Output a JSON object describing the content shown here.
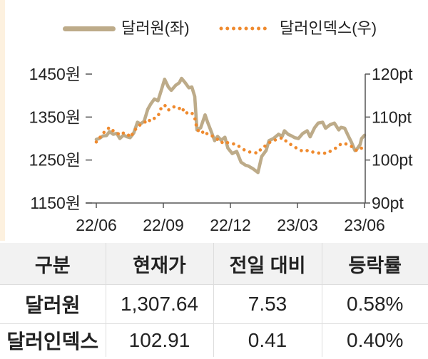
{
  "chart_data": {
    "type": "line",
    "legend": "top",
    "grid": false,
    "xlim": [
      "2022-06-27",
      "2023-06-27"
    ],
    "x_tick_labels": [
      "22/06",
      "22/09",
      "22/12",
      "23/03",
      "23/06"
    ],
    "y_left": {
      "ylim": [
        1150,
        1450
      ],
      "ticks": [
        1450,
        1350,
        1250,
        1150
      ],
      "tick_labels": [
        "1450원",
        "1350원",
        "1250원",
        "1150원"
      ]
    },
    "y_right": {
      "ylim": [
        90,
        120
      ],
      "ticks": [
        120,
        110,
        100,
        90
      ],
      "tick_labels": [
        "120pt",
        "110pt",
        "100pt",
        "90pt"
      ]
    },
    "x": [
      "2022-06-27",
      "2022-07-01",
      "2022-07-06",
      "2022-07-11",
      "2022-07-15",
      "2022-07-20",
      "2022-07-25",
      "2022-07-29",
      "2022-08-03",
      "2022-08-08",
      "2022-08-12",
      "2022-08-17",
      "2022-08-22",
      "2022-08-26",
      "2022-08-31",
      "2022-09-05",
      "2022-09-09",
      "2022-09-14",
      "2022-09-19",
      "2022-09-23",
      "2022-09-28",
      "2022-10-03",
      "2022-10-07",
      "2022-10-13",
      "2022-10-18",
      "2022-10-21",
      "2022-10-26",
      "2022-10-31",
      "2022-11-04",
      "2022-11-08",
      "2022-11-11",
      "2022-11-16",
      "2022-11-22",
      "2022-11-25",
      "2022-11-30",
      "2022-12-05",
      "2022-12-09",
      "2022-12-14",
      "2022-12-19",
      "2022-12-23",
      "2022-12-29",
      "2023-01-04",
      "2023-01-10",
      "2023-01-16",
      "2023-01-20",
      "2023-01-26",
      "2023-02-02",
      "2023-02-07",
      "2023-02-13",
      "2023-02-17",
      "2023-02-23",
      "2023-03-02",
      "2023-03-07",
      "2023-03-10",
      "2023-03-15",
      "2023-03-20",
      "2023-03-24",
      "2023-03-29",
      "2023-04-04",
      "2023-04-10",
      "2023-04-14",
      "2023-04-20",
      "2023-04-25",
      "2023-05-01",
      "2023-05-05",
      "2023-05-11",
      "2023-05-17",
      "2023-05-23",
      "2023-05-26",
      "2023-05-31",
      "2023-06-05",
      "2023-06-09",
      "2023-06-14",
      "2023-06-16",
      "2023-06-21",
      "2023-06-23",
      "2023-06-27"
    ],
    "series": [
      {
        "name": "달러원(좌)",
        "axis": "left",
        "style": "solid",
        "color": "#bdab89",
        "values": [
          1298,
          1300,
          1306,
          1307,
          1316,
          1310,
          1312,
          1300,
          1308,
          1304,
          1302,
          1313,
          1338,
          1334,
          1340,
          1368,
          1380,
          1392,
          1388,
          1410,
          1438,
          1420,
          1412,
          1424,
          1430,
          1440,
          1430,
          1418,
          1420,
          1398,
          1320,
          1325,
          1355,
          1340,
          1318,
          1295,
          1305,
          1296,
          1303,
          1278,
          1265,
          1270,
          1245,
          1238,
          1236,
          1230,
          1221,
          1258,
          1272,
          1295,
          1300,
          1310,
          1305,
          1318,
          1310,
          1306,
          1302,
          1300,
          1312,
          1318,
          1304,
          1325,
          1336,
          1338,
          1324,
          1332,
          1336,
          1320,
          1326,
          1324,
          1306,
          1292,
          1272,
          1274,
          1286,
          1300,
          1307.6
        ]
      },
      {
        "name": "달러인덱스(우)",
        "axis": "right",
        "style": "dotted",
        "color": "#ef8a2e",
        "values": [
          104.2,
          105.0,
          106.2,
          107.0,
          107.6,
          106.8,
          106.4,
          105.8,
          106.3,
          106.2,
          105.3,
          106.5,
          107.8,
          108.2,
          108.6,
          109.5,
          109.0,
          109.7,
          110.2,
          112.0,
          112.8,
          111.6,
          112.2,
          112.5,
          112.0,
          112.4,
          110.8,
          111.2,
          111.0,
          109.8,
          107.2,
          106.2,
          106.8,
          106.0,
          105.8,
          105.2,
          104.8,
          104.0,
          104.4,
          104.0,
          103.8,
          103.6,
          102.8,
          102.2,
          101.9,
          101.8,
          101.6,
          102.8,
          103.4,
          104.0,
          104.6,
          104.8,
          105.2,
          104.6,
          104.2,
          103.4,
          103.0,
          102.6,
          102.0,
          102.2,
          101.8,
          101.9,
          101.6,
          101.8,
          101.5,
          102.0,
          102.6,
          103.2,
          103.8,
          103.8,
          103.6,
          103.2,
          102.6,
          102.2,
          102.4,
          102.8,
          102.9
        ]
      }
    ]
  },
  "table": {
    "headers": [
      "구분",
      "현재가",
      "전일 대비",
      "등락률"
    ],
    "rows": [
      [
        "달러원",
        "1,307.64",
        "7.53",
        "0.58%"
      ],
      [
        "달러인덱스",
        "102.91",
        "0.41",
        "0.40%"
      ]
    ]
  }
}
